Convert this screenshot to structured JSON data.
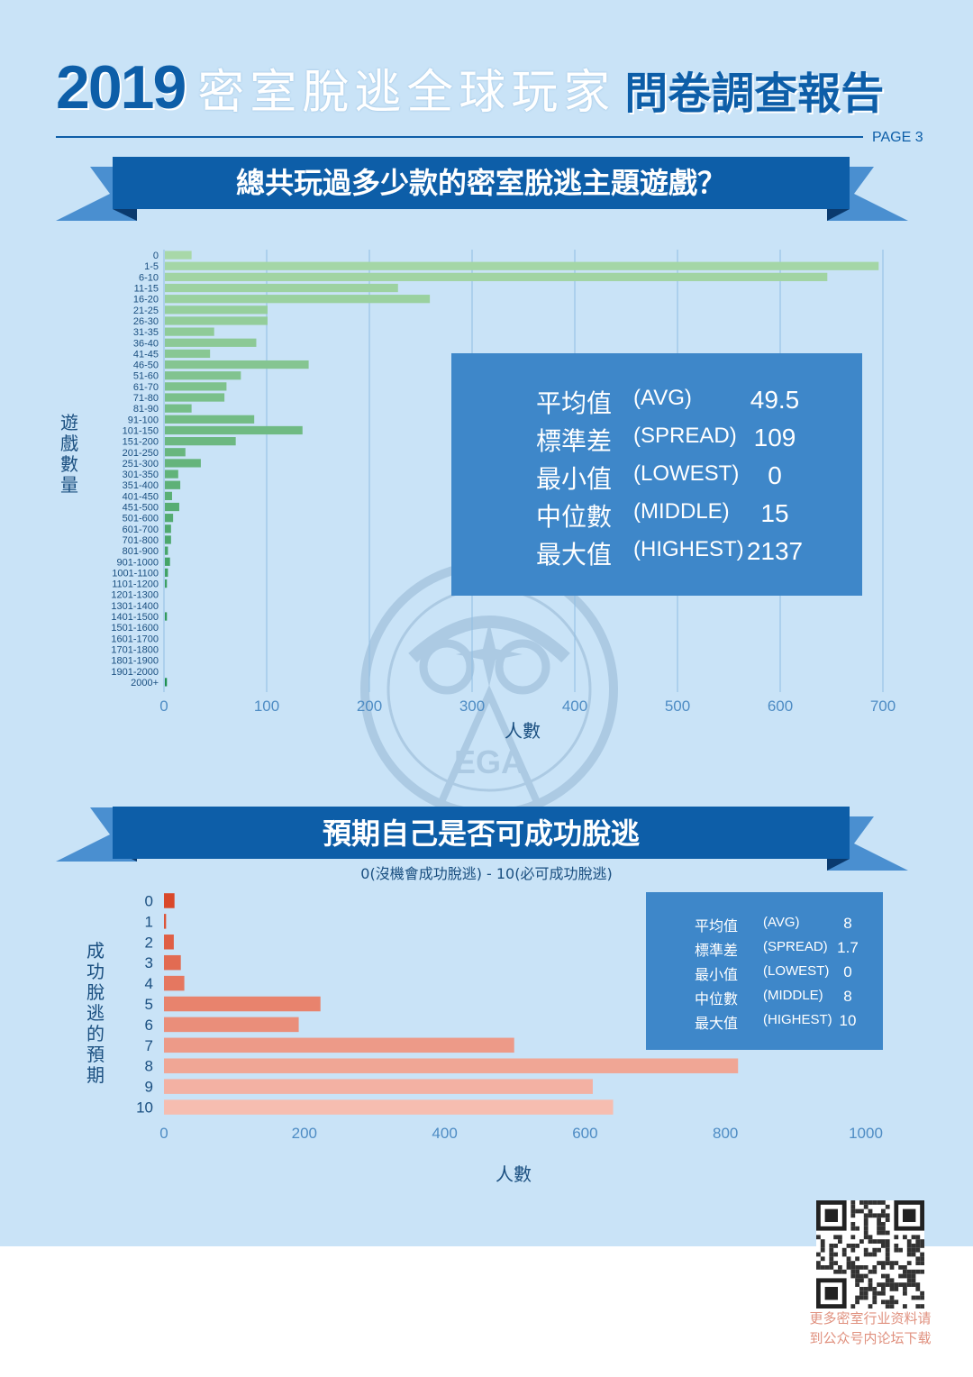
{
  "header": {
    "year": "2019",
    "title_main": "密室脫逃全球玩家",
    "title_sub": "問卷調查報告",
    "page_label": "PAGE 3"
  },
  "watermark": {
    "center": "EGA",
    "ring": "CHINAEGA.COM"
  },
  "section1": {
    "heading": "總共玩過多少款的密室脫逃主題遊戲？",
    "y_title": "遊戲數量",
    "x_title": "人數",
    "stats": [
      {
        "label": "平均值",
        "en": "(AVG)",
        "value": "49.5"
      },
      {
        "label": "標準差",
        "en": "(SPREAD)",
        "value": "109"
      },
      {
        "label": "最小值",
        "en": "(LOWEST)",
        "value": "0"
      },
      {
        "label": "中位數",
        "en": "(MIDDLE)",
        "value": "15"
      },
      {
        "label": "最大值",
        "en": "(HIGHEST)",
        "value": "2137"
      }
    ]
  },
  "section2": {
    "heading": "預期自己是否可成功脫逃",
    "subtitle": "0(沒機會成功脫逃) - 10(必可成功脫逃)",
    "y_title": "成功脫逃的預期",
    "x_title": "人數",
    "stats": [
      {
        "label": "平均值",
        "en": "(AVG)",
        "value": "8"
      },
      {
        "label": "標準差",
        "en": "(SPREAD)",
        "value": "1.7"
      },
      {
        "label": "最小值",
        "en": "(LOWEST)",
        "value": "0"
      },
      {
        "label": "中位數",
        "en": "(MIDDLE)",
        "value": "8"
      },
      {
        "label": "最大值",
        "en": "(HIGHEST)",
        "value": "10"
      }
    ]
  },
  "footer": {
    "caption_line1": "更多密室行业资料请",
    "caption_line2": "到公众号内论坛下载"
  },
  "chart_data": [
    {
      "type": "bar",
      "orientation": "horizontal",
      "title": "總共玩過多少款的密室脫逃主題遊戲？",
      "ylabel": "遊戲數量",
      "xlabel": "人數",
      "categories": [
        "0",
        "1-5",
        "6-10",
        "11-15",
        "16-20",
        "21-25",
        "26-30",
        "31-35",
        "36-40",
        "41-45",
        "46-50",
        "51-60",
        "61-70",
        "71-80",
        "81-90",
        "91-100",
        "101-150",
        "151-200",
        "201-250",
        "251-300",
        "301-350",
        "351-400",
        "401-450",
        "451-500",
        "501-600",
        "601-700",
        "701-800",
        "801-900",
        "901-1000",
        "1001-1100",
        "1101-1200",
        "1201-1300",
        "1301-1400",
        "1401-1500",
        "1501-1600",
        "1601-1700",
        "1701-1800",
        "1801-1900",
        "1901-2000",
        "2000+"
      ],
      "values": [
        26,
        695,
        645,
        227,
        258,
        100,
        100,
        48,
        89,
        44,
        140,
        74,
        60,
        58,
        26,
        87,
        134,
        69,
        20,
        35,
        13,
        15,
        7,
        14,
        8,
        6,
        6,
        3,
        5,
        3,
        2,
        0,
        0,
        2,
        0,
        0,
        0,
        0,
        0,
        2
      ],
      "xlim": [
        0,
        700
      ],
      "xticks": [
        0,
        100,
        200,
        300,
        400,
        500,
        600,
        700
      ],
      "grid": true,
      "colors": [
        "#a8d8a8",
        "#1e8f4e"
      ]
    },
    {
      "type": "bar",
      "orientation": "horizontal",
      "title": "預期自己是否可成功脫逃",
      "subtitle": "0(沒機會成功脫逃) - 10(必可成功脫逃)",
      "ylabel": "成功脫逃的預期",
      "xlabel": "人數",
      "categories": [
        "0",
        "1",
        "2",
        "3",
        "4",
        "5",
        "6",
        "7",
        "8",
        "9",
        "10"
      ],
      "values": [
        15,
        3,
        14,
        24,
        29,
        223,
        192,
        499,
        818,
        611,
        640
      ],
      "xlim": [
        0,
        1000
      ],
      "xticks": [
        0,
        200,
        400,
        600,
        800,
        1000
      ],
      "grid": true,
      "colors": [
        "#d9482a",
        "#f6bdb0"
      ]
    }
  ]
}
